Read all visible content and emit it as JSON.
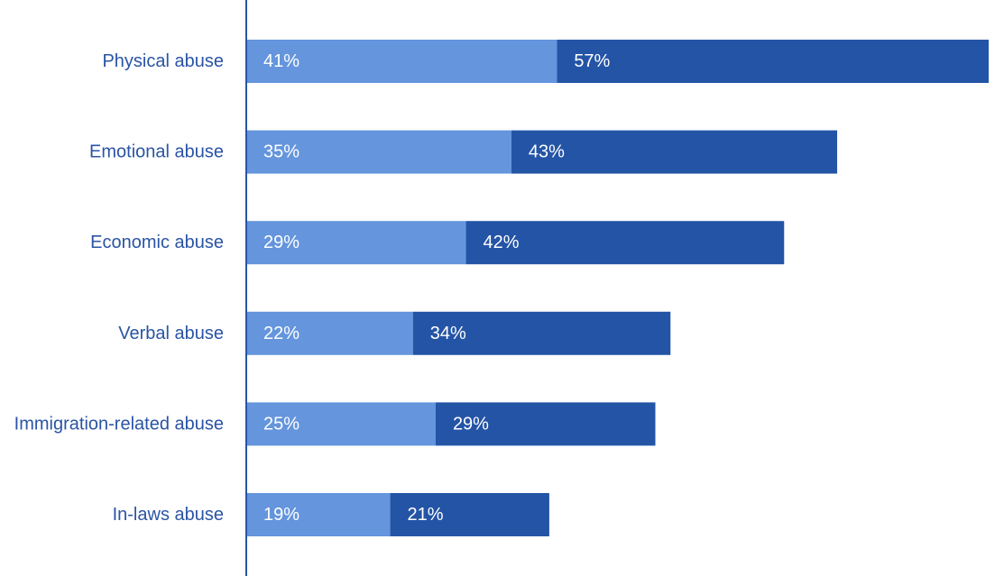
{
  "chart_data": {
    "type": "bar",
    "orientation": "horizontal",
    "stacked": true,
    "title": "",
    "xlabel": "",
    "ylabel": "",
    "legend": "none",
    "grid": false,
    "xlim": [
      0,
      98
    ],
    "categories": [
      "Physical abuse",
      "Emotional abuse",
      "Economic abuse",
      "Verbal abuse",
      "Immigration-related abuse",
      "In-laws abuse"
    ],
    "series": [
      {
        "values": [
          41,
          35,
          29,
          22,
          25,
          19
        ],
        "labels": [
          "41%",
          "35%",
          "29%",
          "22%",
          "25%",
          "19%"
        ],
        "color": "#6495DD"
      },
      {
        "values": [
          57,
          43,
          42,
          34,
          29,
          21
        ],
        "labels": [
          "57%",
          "43%",
          "42%",
          "34%",
          "29%",
          "21%"
        ],
        "color": "#2454A6"
      }
    ],
    "text_color": "#2A54A4",
    "axis_color": "#2A54A4"
  }
}
